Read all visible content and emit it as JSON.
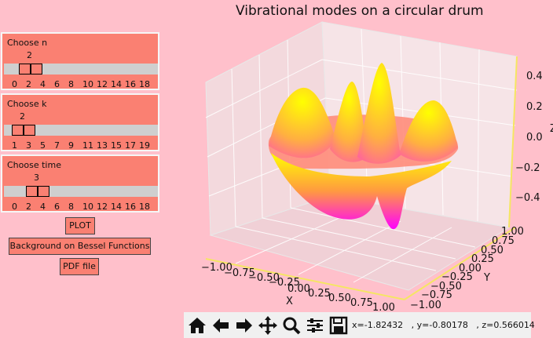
{
  "figure_title": "Vibrational modes on a circular drum",
  "sliders": [
    {
      "title": "Choose n",
      "value": "2",
      "ticks": [
        "0",
        "2",
        "4",
        "6",
        "8",
        "10",
        "12",
        "14",
        "16",
        "18"
      ]
    },
    {
      "title": "Choose k",
      "value": "2",
      "ticks": [
        "1",
        "3",
        "5",
        "7",
        "9",
        "11",
        "13",
        "15",
        "17",
        "19"
      ]
    },
    {
      "title": "Choose time",
      "value": "3",
      "ticks": [
        "0",
        "2",
        "4",
        "6",
        "8",
        "10",
        "12",
        "14",
        "16",
        "18"
      ]
    }
  ],
  "buttons": {
    "plot": "PLOT",
    "background": "Background on Bessel Functions",
    "pdf": "PDF file"
  },
  "axes": {
    "x_label": "X",
    "y_label": "Y",
    "z_label": "Z",
    "x_ticks": [
      "−1.00",
      "−0.75",
      "−0.50",
      "−0.25",
      "0.00",
      "0.25",
      "0.50",
      "0.75",
      "1.00"
    ],
    "y_ticks": [
      "1.00",
      "0.75",
      "0.50",
      "0.25",
      "0.00",
      "−0.25",
      "−0.50",
      "−0.75",
      "−1.00"
    ],
    "z_ticks": [
      "0.4",
      "0.2",
      "0.0",
      "−0.2",
      "−0.4"
    ]
  },
  "toolbar": {
    "icons": [
      "home-icon",
      "back-arrow-icon",
      "forward-arrow-icon",
      "pan-icon",
      "zoom-icon",
      "configure-subplots-icon",
      "save-icon"
    ],
    "coords": "x=-1.82432   , y=-0.80178   , z=0.566014"
  },
  "colors": {
    "background": "#ffc0cb",
    "panel": "#fa8072",
    "surface_top": "#ffff00",
    "surface_bottom": "#ff00ff"
  }
}
